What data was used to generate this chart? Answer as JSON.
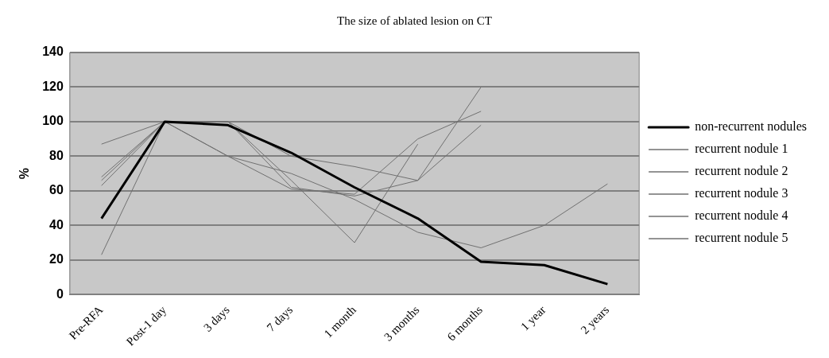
{
  "chart_data": {
    "type": "line",
    "title": "The size of ablated lesion on CT",
    "ylabel": "%",
    "categories": [
      "Pre-RFA",
      "Post-1 day",
      "3 days",
      "7 days",
      "1 month",
      "3 months",
      "6 months",
      "1 year",
      "2 years"
    ],
    "series": [
      {
        "name": "non-recurrent nodules",
        "color": "#000000",
        "values": [
          44,
          100,
          98,
          82,
          62,
          44,
          19,
          17,
          6
        ]
      },
      {
        "name": "recurrent nodule 1",
        "color": "#707070",
        "values": [
          87,
          100,
          100,
          80,
          74,
          66,
          120,
          null,
          null
        ]
      },
      {
        "name": "recurrent nodule 2",
        "color": "#707070",
        "values": [
          63,
          100,
          80,
          61,
          58,
          90,
          106,
          null,
          null
        ]
      },
      {
        "name": "recurrent nodule 3",
        "color": "#707070",
        "values": [
          66,
          100,
          100,
          66,
          30,
          87,
          null,
          null,
          null
        ]
      },
      {
        "name": "recurrent nodule 4",
        "color": "#707070",
        "values": [
          23,
          100,
          80,
          70,
          55,
          36,
          27,
          40,
          64
        ]
      },
      {
        "name": "recurrent nodule 5",
        "color": "#707070",
        "values": [
          68,
          100,
          100,
          62,
          57,
          66,
          98,
          null,
          null
        ]
      }
    ],
    "ylim": [
      0,
      140
    ],
    "yticks": [
      0,
      20,
      40,
      60,
      80,
      100,
      120,
      140
    ],
    "grid": "y",
    "legend": "right",
    "marker": "none",
    "line_style": "solid"
  }
}
